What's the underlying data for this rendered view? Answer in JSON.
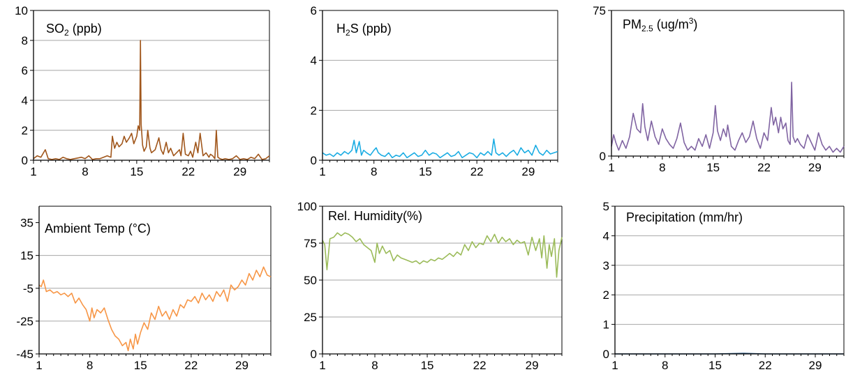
{
  "chart_data": [
    {
      "type": "line",
      "title_parts": [
        [
          "SO",
          "n"
        ],
        [
          "2",
          "sub"
        ],
        [
          " (ppb)",
          "n"
        ]
      ],
      "color": "#a0561b",
      "xlim": [
        1,
        33
      ],
      "ylim": [
        0,
        10
      ],
      "x_ticks": [
        1,
        8,
        15,
        22,
        29
      ],
      "x_tick_labels": [
        "1",
        "8",
        "15",
        "22",
        "29"
      ],
      "y_ticks": [
        0,
        2,
        4,
        6,
        8,
        10
      ],
      "y_tick_labels": [
        "0",
        "2",
        "4",
        "6",
        "8",
        "10"
      ],
      "grid": true,
      "series": [
        {
          "x": [
            1,
            1.5,
            2,
            2.6,
            3,
            3.5,
            4,
            4.5,
            5,
            5.5,
            6,
            6.5,
            7,
            7.5,
            8,
            8.5,
            9,
            9.5,
            10,
            10.5,
            11,
            11.5,
            11.7,
            12,
            12.3,
            12.6,
            13,
            13.3,
            13.6,
            14,
            14.3,
            14.6,
            15,
            15.2,
            15.4,
            15.5,
            15.6,
            15.8,
            16,
            16.3,
            16.5,
            16.8,
            17,
            17.5,
            18,
            18.3,
            18.6,
            19,
            19.3,
            19.6,
            20,
            20.4,
            20.8,
            21,
            21.3,
            21.6,
            22,
            22.3,
            22.6,
            23,
            23.3,
            23.6,
            24,
            24.4,
            24.8,
            25,
            25.3,
            25.6,
            25.8,
            26,
            26.3,
            26.6,
            27,
            27.5,
            28,
            28.5,
            29,
            29.5,
            30,
            30.5,
            31,
            31.5,
            32,
            32.5,
            33
          ],
          "values": [
            0.1,
            0.3,
            0.2,
            0.7,
            0.1,
            0.05,
            0.1,
            0.05,
            0.2,
            0.1,
            0.05,
            0.1,
            0.15,
            0.2,
            0.1,
            0.3,
            0.05,
            0.1,
            0.1,
            0.2,
            0.3,
            0.2,
            1.6,
            0.8,
            1.2,
            0.9,
            1.1,
            1.6,
            1.2,
            1.5,
            1.8,
            1.1,
            1.6,
            2.3,
            2.0,
            8.0,
            2.4,
            1.0,
            0.6,
            0.9,
            2.0,
            0.8,
            0.5,
            0.7,
            1.5,
            0.7,
            0.4,
            1.2,
            0.5,
            0.8,
            0.3,
            0.5,
            0.7,
            0.3,
            1.8,
            0.4,
            0.3,
            0.6,
            0.2,
            1.2,
            0.5,
            1.8,
            0.3,
            0.5,
            0.2,
            0.4,
            0.3,
            0.1,
            2.0,
            0.2,
            0.1,
            0.05,
            0.1,
            0.05,
            0.1,
            0.3,
            0.05,
            0.1,
            0.05,
            0.2,
            0.1,
            0.4,
            0.05,
            0.1,
            0.3
          ]
        }
      ]
    },
    {
      "type": "line",
      "title_parts": [
        [
          "H",
          "n"
        ],
        [
          "2",
          "sub"
        ],
        [
          "S  (ppb)",
          "n"
        ]
      ],
      "color": "#1aace3",
      "xlim": [
        1,
        33
      ],
      "ylim": [
        0,
        6
      ],
      "x_ticks": [
        1,
        8,
        15,
        22,
        29
      ],
      "x_tick_labels": [
        "1",
        "8",
        "15",
        "22",
        "29"
      ],
      "y_ticks": [
        0,
        2,
        4,
        6
      ],
      "y_tick_labels": [
        "0",
        "2",
        "4",
        "6"
      ],
      "grid": true,
      "series": [
        {
          "x": [
            1,
            1.5,
            2,
            2.5,
            3,
            3.5,
            4,
            4.5,
            5,
            5.3,
            5.6,
            6,
            6.3,
            6.6,
            7,
            7.5,
            8,
            8.3,
            8.6,
            9,
            9.5,
            10,
            10.5,
            11,
            11.5,
            12,
            12.5,
            13,
            13.5,
            14,
            14.5,
            15,
            15.5,
            16,
            16.5,
            17,
            17.5,
            18,
            18.5,
            19,
            19.5,
            20,
            20.5,
            21,
            21.5,
            22,
            22.5,
            23,
            23.5,
            24,
            24.3,
            24.6,
            25,
            25.5,
            26,
            26.5,
            27,
            27.5,
            28,
            28.5,
            29,
            29.5,
            30,
            30.5,
            31,
            31.5,
            32,
            32.5,
            33
          ],
          "values": [
            0.3,
            0.2,
            0.25,
            0.15,
            0.3,
            0.2,
            0.35,
            0.25,
            0.4,
            0.8,
            0.3,
            0.75,
            0.2,
            0.4,
            0.3,
            0.2,
            0.4,
            0.5,
            0.3,
            0.2,
            0.15,
            0.3,
            0.1,
            0.2,
            0.15,
            0.3,
            0.1,
            0.2,
            0.3,
            0.15,
            0.2,
            0.4,
            0.2,
            0.3,
            0.25,
            0.1,
            0.2,
            0.3,
            0.15,
            0.2,
            0.35,
            0.1,
            0.2,
            0.3,
            0.25,
            0.1,
            0.3,
            0.2,
            0.35,
            0.2,
            0.85,
            0.3,
            0.2,
            0.3,
            0.15,
            0.3,
            0.4,
            0.2,
            0.5,
            0.3,
            0.4,
            0.2,
            0.6,
            0.3,
            0.2,
            0.4,
            0.25,
            0.3,
            0.35
          ]
        }
      ]
    },
    {
      "type": "line",
      "title_parts": [
        [
          "PM",
          "n"
        ],
        [
          "2.5",
          "sub"
        ],
        [
          " (ug/m",
          "n"
        ],
        [
          "3",
          "sup"
        ],
        [
          ")",
          "n"
        ]
      ],
      "color": "#8064a2",
      "xlim": [
        1,
        33
      ],
      "ylim": [
        0,
        75
      ],
      "x_ticks": [
        1,
        8,
        15,
        22,
        29
      ],
      "x_tick_labels": [
        "1",
        "8",
        "15",
        "22",
        "29"
      ],
      "y_ticks": [
        0,
        75
      ],
      "y_tick_labels": [
        "0",
        "75"
      ],
      "grid": false,
      "series": [
        {
          "x": [
            1,
            1.3,
            1.6,
            2,
            2.5,
            3,
            3.5,
            4,
            4.5,
            5,
            5.3,
            5.6,
            6,
            6.5,
            7,
            7.5,
            8,
            8.5,
            9,
            9.5,
            10,
            10.5,
            11,
            11.5,
            12,
            12.5,
            13,
            13.5,
            14,
            14.5,
            15,
            15.3,
            15.6,
            16,
            16.4,
            16.8,
            17,
            17.5,
            18,
            18.5,
            19,
            19.5,
            20,
            20.5,
            21,
            21.5,
            22,
            22.5,
            23,
            23.3,
            23.6,
            24,
            24.3,
            24.6,
            25,
            25.3,
            25.6,
            25.8,
            26,
            26.3,
            26.6,
            27,
            27.5,
            28,
            28.5,
            29,
            29.5,
            30,
            30.5,
            31,
            31.5,
            32,
            32.5,
            33
          ],
          "values": [
            5,
            11,
            7,
            3,
            8,
            4,
            10,
            22,
            14,
            12,
            27,
            15,
            8,
            18,
            10,
            6,
            14,
            9,
            6,
            4,
            9,
            17,
            7,
            3,
            5,
            3,
            9,
            5,
            11,
            4,
            12,
            26,
            13,
            8,
            14,
            10,
            16,
            5,
            3,
            8,
            12,
            7,
            10,
            18,
            9,
            4,
            12,
            8,
            25,
            16,
            20,
            12,
            20,
            14,
            17,
            8,
            6,
            38,
            10,
            7,
            9,
            6,
            4,
            11,
            7,
            3,
            12,
            6,
            3,
            5,
            2,
            4,
            2,
            5
          ]
        }
      ]
    },
    {
      "type": "line",
      "title_parts": [
        [
          "Ambient Temp (°C)",
          "n"
        ]
      ],
      "color": "#f79646",
      "xlim": [
        1,
        33
      ],
      "ylim": [
        -45,
        45
      ],
      "x_ticks": [
        1,
        8,
        15,
        22,
        29
      ],
      "x_tick_labels": [
        "1",
        "8",
        "15",
        "22",
        "29"
      ],
      "y_ticks": [
        -45,
        -25,
        -5,
        15,
        35
      ],
      "y_tick_labels": [
        "-45",
        "-25",
        "-5",
        "15",
        "35"
      ],
      "grid": true,
      "series": [
        {
          "x": [
            1,
            1.3,
            1.6,
            2,
            2.5,
            3,
            3.5,
            4,
            4.5,
            5,
            5.5,
            6,
            6.5,
            7,
            7.5,
            8,
            8.3,
            8.6,
            9,
            9.5,
            10,
            10.5,
            11,
            11.5,
            12,
            12.5,
            13,
            13.3,
            13.6,
            14,
            14.3,
            14.6,
            15,
            15.5,
            16,
            16.5,
            17,
            17.5,
            18,
            18.5,
            19,
            19.5,
            20,
            20.5,
            21,
            21.5,
            22,
            22.5,
            23,
            23.5,
            24,
            24.5,
            25,
            25.5,
            26,
            26.5,
            27,
            27.5,
            28,
            28.5,
            29,
            29.5,
            30,
            30.5,
            31,
            31.5,
            32,
            32.5,
            33
          ],
          "values": [
            -3,
            -4,
            0,
            -7,
            -6,
            -8,
            -7,
            -9,
            -8,
            -10,
            -8,
            -14,
            -11,
            -15,
            -18,
            -25,
            -17,
            -23,
            -18,
            -20,
            -17,
            -24,
            -30,
            -34,
            -36,
            -40,
            -38,
            -43,
            -36,
            -42,
            -33,
            -39,
            -32,
            -26,
            -30,
            -20,
            -24,
            -16,
            -22,
            -19,
            -24,
            -18,
            -22,
            -15,
            -17,
            -12,
            -13,
            -10,
            -14,
            -8,
            -12,
            -9,
            -13,
            -7,
            -10,
            -6,
            -13,
            -3,
            -6,
            -4,
            0,
            -3,
            4,
            0,
            6,
            2,
            8,
            3,
            2
          ]
        }
      ]
    },
    {
      "type": "line",
      "title_parts": [
        [
          "Rel. Humidity(%)",
          "n"
        ]
      ],
      "color": "#9bbb59",
      "xlim": [
        1,
        33
      ],
      "ylim": [
        0,
        100
      ],
      "x_ticks": [
        1,
        8,
        15,
        22,
        29
      ],
      "x_tick_labels": [
        "1",
        "8",
        "15",
        "22",
        "29"
      ],
      "y_ticks": [
        0,
        25,
        50,
        75,
        100
      ],
      "y_tick_labels": [
        "0",
        "25",
        "50",
        "75",
        "100"
      ],
      "grid": true,
      "series": [
        {
          "x": [
            1,
            1.3,
            1.6,
            2,
            2.5,
            3,
            3.5,
            4,
            4.5,
            5,
            5.5,
            6,
            6.5,
            7,
            7.5,
            8,
            8.3,
            8.6,
            9,
            9.5,
            10,
            10.5,
            11,
            11.5,
            12,
            12.5,
            13,
            13.5,
            14,
            14.5,
            15,
            15.5,
            16,
            16.5,
            17,
            17.5,
            18,
            18.5,
            19,
            19.5,
            20,
            20.5,
            21,
            21.5,
            22,
            22.5,
            23,
            23.5,
            24,
            24.5,
            25,
            25.5,
            26,
            26.5,
            27,
            27.5,
            28,
            28.5,
            29,
            29.5,
            30,
            30.3,
            30.6,
            31,
            31.3,
            31.6,
            32,
            32.3,
            32.6,
            33
          ],
          "values": [
            77,
            74,
            57,
            78,
            79,
            82,
            80,
            82,
            81,
            79,
            76,
            78,
            74,
            72,
            70,
            62,
            75,
            68,
            73,
            68,
            70,
            63,
            67,
            65,
            64,
            63,
            62,
            63,
            61,
            63,
            62,
            64,
            63,
            65,
            64,
            66,
            68,
            66,
            69,
            67,
            74,
            70,
            76,
            72,
            75,
            74,
            80,
            76,
            81,
            75,
            79,
            76,
            78,
            74,
            77,
            75,
            76,
            67,
            79,
            70,
            78,
            65,
            80,
            58,
            74,
            66,
            78,
            52,
            70,
            79
          ]
        }
      ]
    },
    {
      "type": "line",
      "title_parts": [
        [
          "Precipitation (mm/hr)",
          "n"
        ]
      ],
      "color": "#1f4e79",
      "xlim": [
        1,
        33
      ],
      "ylim": [
        0,
        5
      ],
      "x_ticks": [
        1,
        8,
        15,
        22,
        29
      ],
      "x_tick_labels": [
        "1",
        "8",
        "15",
        "22",
        "29"
      ],
      "y_ticks": [
        0,
        1,
        2,
        3,
        4,
        5
      ],
      "y_tick_labels": [
        "0",
        "1",
        "2",
        "3",
        "4",
        "5"
      ],
      "grid": true,
      "series": [
        {
          "x": [
            1,
            5,
            10,
            15,
            19,
            22,
            26,
            29,
            33
          ],
          "values": [
            0,
            0,
            0,
            0,
            0.02,
            0,
            0,
            0,
            0
          ]
        }
      ]
    }
  ]
}
